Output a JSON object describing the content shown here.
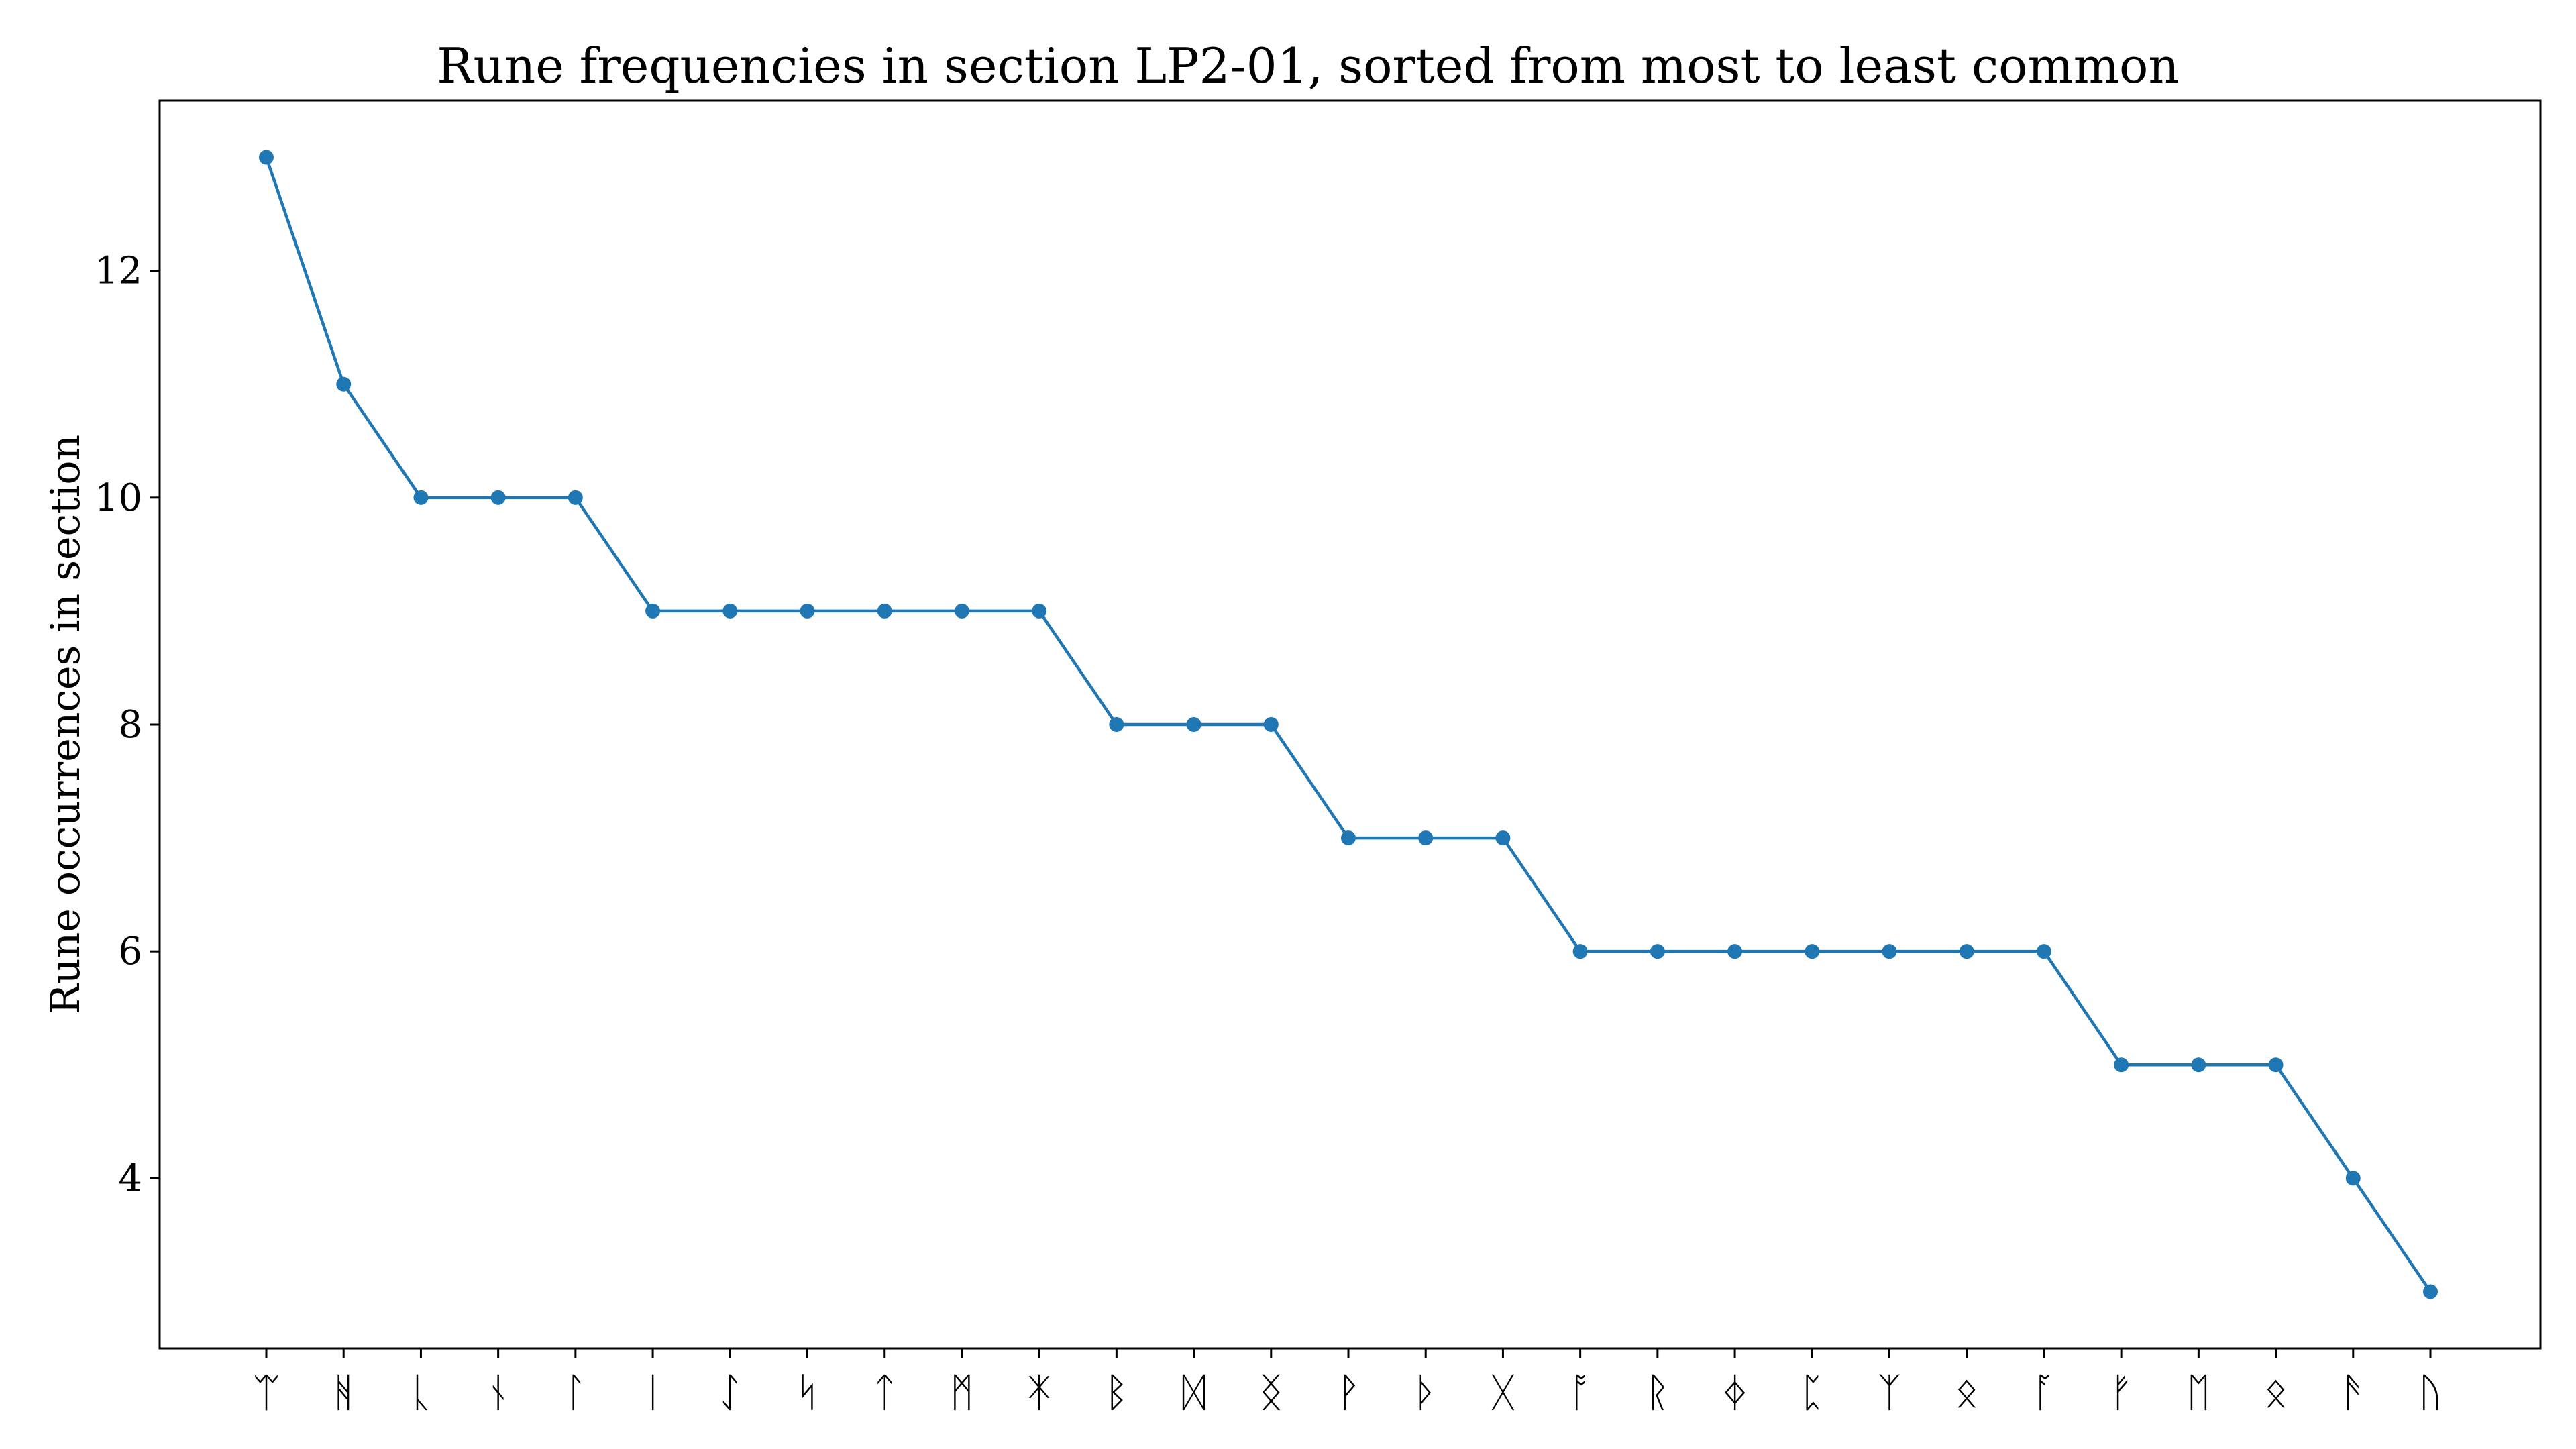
{
  "chart_data": {
    "type": "line",
    "title": "Rune frequencies in section LP2-01, sorted from most to least common",
    "xlabel": "",
    "ylabel": "Rune occurrences in section",
    "categories": [
      "ᛠ",
      "ᚻ",
      "ᚳ",
      "ᚾ",
      "ᛚ",
      "ᛁ",
      "ᛇ",
      "ᛋ",
      "ᛏ",
      "ᛗ",
      "ᛡ",
      "ᛒ",
      "ᛞ",
      "ᛝ",
      "ᚹ",
      "ᚦ",
      "ᚷ",
      "ᚩ",
      "ᚱ",
      "ᛄ",
      "ᛈ",
      "ᛉ",
      "ᛟ",
      "ᚪ",
      "ᚠ",
      "ᛖ",
      "ᛟ",
      "ᚫ",
      "ᚢ"
    ],
    "series": [
      {
        "values": [
          13,
          11,
          10,
          10,
          10,
          9,
          9,
          9,
          9,
          9,
          9,
          8,
          8,
          8,
          7,
          7,
          7,
          6,
          6,
          6,
          6,
          6,
          6,
          6,
          5,
          5,
          5,
          4,
          3
        ],
        "color": "#1f77b4",
        "marker": "circle"
      }
    ],
    "yticks": [
      4,
      6,
      8,
      10,
      12
    ],
    "ylim": [
      2.5,
      13.5
    ],
    "grid": false,
    "legend": "none"
  }
}
